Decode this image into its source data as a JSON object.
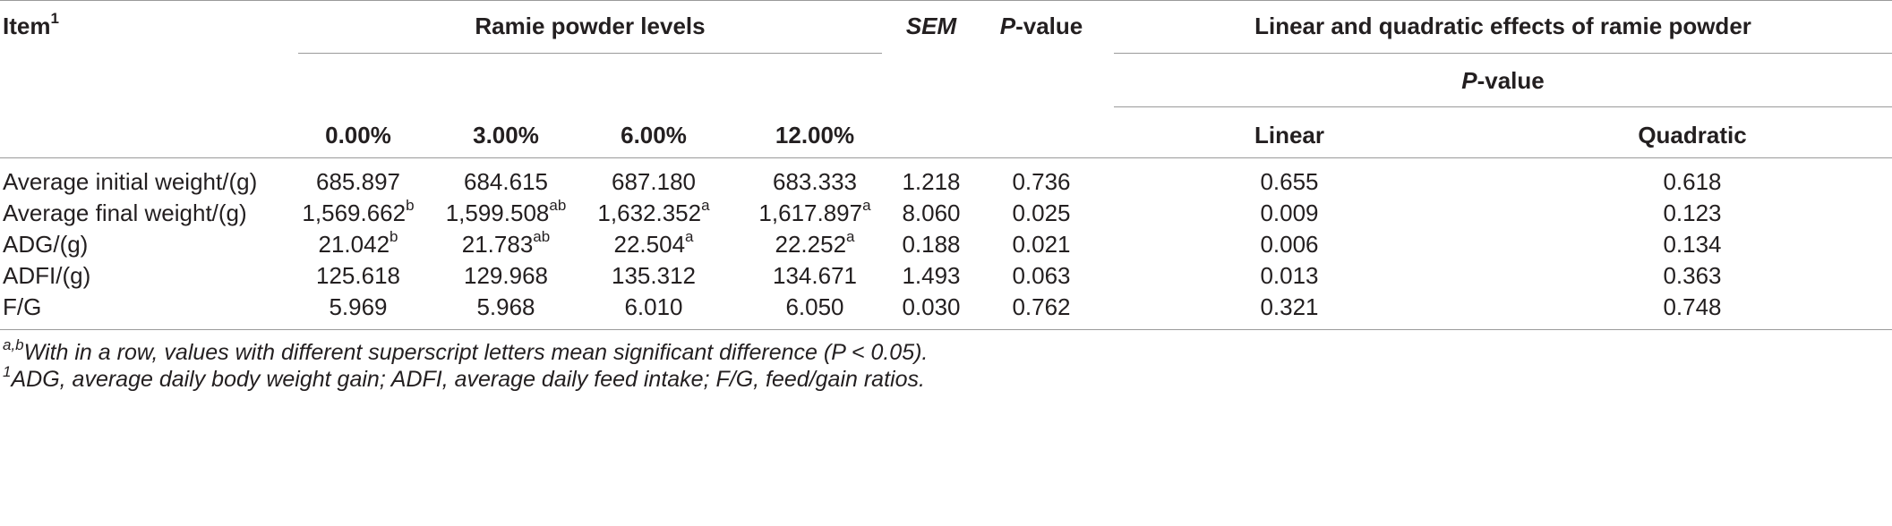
{
  "header": {
    "item_label": "Item",
    "item_sup": "1",
    "group_label": "Ramie powder levels",
    "sem_label": "SEM",
    "pvalue_italic": "P",
    "pvalue_rest": "-value",
    "effects_label": "Linear and quadratic effects of ramie powder",
    "effects_p_italic": "P",
    "effects_p_rest": "-value",
    "levels": [
      "0.00%",
      "3.00%",
      "6.00%",
      "12.00%"
    ],
    "linear_label": "Linear",
    "quadratic_label": "Quadratic"
  },
  "rows": [
    {
      "item": "Average initial weight/(g)",
      "v": [
        "685.897",
        "684.615",
        "687.180",
        "683.333"
      ],
      "s": [
        "",
        "",
        "",
        ""
      ],
      "sem": "1.218",
      "p": "0.736",
      "linear": "0.655",
      "quadratic": "0.618"
    },
    {
      "item": "Average final weight/(g)",
      "v": [
        "1,569.662",
        "1,599.508",
        "1,632.352",
        "1,617.897"
      ],
      "s": [
        "b",
        "ab",
        "a",
        "a"
      ],
      "sem": "8.060",
      "p": "0.025",
      "linear": "0.009",
      "quadratic": "0.123"
    },
    {
      "item": "ADG/(g)",
      "v": [
        "21.042",
        "21.783",
        "22.504",
        "22.252"
      ],
      "s": [
        "b",
        "ab",
        "a",
        "a"
      ],
      "sem": "0.188",
      "p": "0.021",
      "linear": "0.006",
      "quadratic": "0.134"
    },
    {
      "item": "ADFI/(g)",
      "v": [
        "125.618",
        "129.968",
        "135.312",
        "134.671"
      ],
      "s": [
        "",
        "",
        "",
        ""
      ],
      "sem": "1.493",
      "p": "0.063",
      "linear": "0.013",
      "quadratic": "0.363"
    },
    {
      "item": "F/G",
      "v": [
        "5.969",
        "5.968",
        "6.010",
        "6.050"
      ],
      "s": [
        "",
        "",
        "",
        ""
      ],
      "sem": "0.030",
      "p": "0.762",
      "linear": "0.321",
      "quadratic": "0.748"
    }
  ],
  "footnotes": [
    {
      "sup": "a,b",
      "text": "With in a row, values with different superscript letters mean significant difference (P < 0.05)."
    },
    {
      "sup": "1",
      "text": "ADG, average daily body weight gain; ADFI, average daily feed intake; F/G, feed/gain ratios."
    }
  ]
}
